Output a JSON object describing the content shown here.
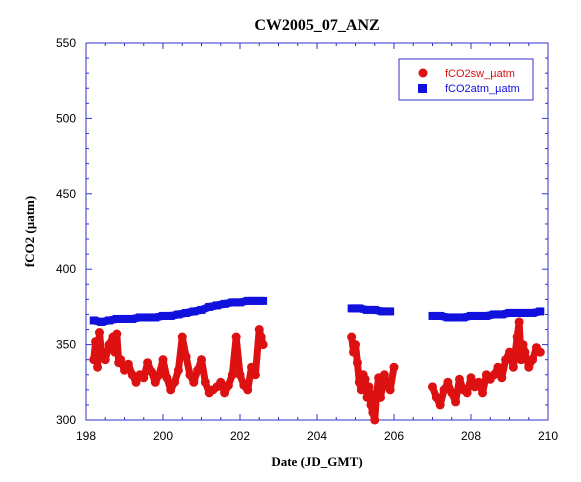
{
  "chart_data": {
    "type": "scatter",
    "title": "CW2005_07_ANZ",
    "xlabel": "Date (JD_GMT)",
    "ylabel": "fCO2 (µatm)",
    "xlim": [
      198,
      210
    ],
    "ylim": [
      300,
      550
    ],
    "xticks": [
      198,
      200,
      202,
      204,
      206,
      208,
      210
    ],
    "yticks": [
      300,
      350,
      400,
      450,
      500,
      550
    ],
    "grid": false,
    "legend_position": "top-right",
    "series": [
      {
        "name": "fCO2sw_µatm",
        "color": "#dd1111",
        "marker": "circle",
        "x": [
          198.2,
          198.25,
          198.3,
          198.35,
          198.4,
          198.5,
          198.6,
          198.7,
          198.75,
          198.8,
          198.85,
          198.9,
          199.0,
          199.1,
          199.2,
          199.3,
          199.4,
          199.5,
          199.6,
          199.7,
          199.8,
          199.9,
          200.0,
          200.1,
          200.2,
          200.3,
          200.4,
          200.5,
          200.6,
          200.7,
          200.8,
          200.9,
          201.0,
          201.1,
          201.2,
          201.3,
          201.4,
          201.5,
          201.6,
          201.7,
          201.8,
          201.9,
          202.0,
          202.1,
          202.2,
          202.3,
          202.4,
          202.5,
          202.55,
          202.6,
          204.9,
          204.95,
          205.0,
          205.05,
          205.1,
          205.15,
          205.2,
          205.25,
          205.3,
          205.35,
          205.4,
          205.45,
          205.5,
          205.55,
          205.6,
          205.65,
          205.7,
          205.75,
          205.8,
          205.9,
          206.0,
          207.0,
          207.1,
          207.2,
          207.3,
          207.4,
          207.5,
          207.6,
          207.7,
          207.8,
          207.9,
          208.0,
          208.1,
          208.2,
          208.3,
          208.4,
          208.5,
          208.6,
          208.7,
          208.8,
          208.9,
          209.0,
          209.1,
          209.2,
          209.25,
          209.3,
          209.35,
          209.4,
          209.5,
          209.6,
          209.7,
          209.8
        ],
        "y": [
          340,
          352,
          335,
          358,
          345,
          340,
          350,
          355,
          345,
          357,
          338,
          340,
          333,
          337,
          330,
          325,
          330,
          328,
          338,
          332,
          325,
          330,
          340,
          328,
          320,
          325,
          333,
          355,
          342,
          330,
          325,
          333,
          340,
          325,
          318,
          320,
          322,
          325,
          318,
          323,
          330,
          355,
          330,
          323,
          320,
          335,
          330,
          360,
          355,
          350,
          355,
          345,
          350,
          338,
          325,
          320,
          330,
          327,
          315,
          322,
          310,
          305,
          300,
          318,
          328,
          315,
          322,
          330,
          325,
          320,
          335,
          322,
          315,
          310,
          320,
          325,
          318,
          312,
          327,
          320,
          318,
          328,
          322,
          325,
          318,
          330,
          327,
          330,
          335,
          328,
          340,
          345,
          335,
          355,
          365,
          340,
          350,
          345,
          335,
          340,
          348,
          345
        ]
      },
      {
        "name": "fCO2atm_µatm",
        "color": "#1111dd",
        "marker": "square",
        "x": [
          198.2,
          198.4,
          198.6,
          198.8,
          199.0,
          199.2,
          199.4,
          199.6,
          199.8,
          200.0,
          200.2,
          200.4,
          200.6,
          200.8,
          201.0,
          201.2,
          201.4,
          201.6,
          201.8,
          202.0,
          202.2,
          202.4,
          202.6,
          204.9,
          205.1,
          205.3,
          205.5,
          205.7,
          205.9,
          207.0,
          207.2,
          207.4,
          207.6,
          207.8,
          208.0,
          208.2,
          208.4,
          208.6,
          208.8,
          209.0,
          209.2,
          209.4,
          209.6,
          209.8
        ],
        "y": [
          366,
          365,
          366,
          367,
          367,
          367,
          368,
          368,
          368,
          369,
          369,
          370,
          371,
          372,
          373,
          375,
          376,
          377,
          378,
          378,
          379,
          379,
          379,
          374,
          374,
          373,
          373,
          372,
          372,
          369,
          369,
          368,
          368,
          368,
          369,
          369,
          369,
          370,
          370,
          371,
          371,
          371,
          371,
          372
        ]
      }
    ]
  }
}
